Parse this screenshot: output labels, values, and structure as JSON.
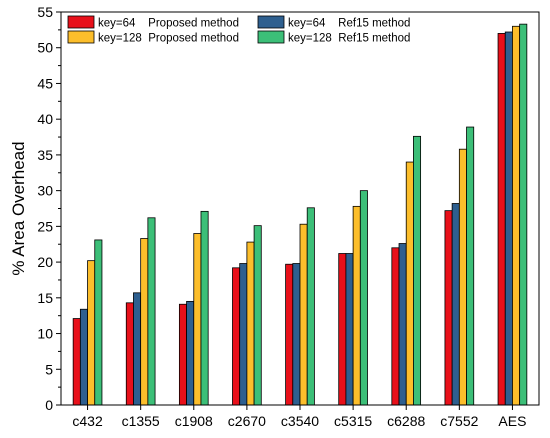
{
  "chart_data": {
    "type": "bar",
    "title": "",
    "xlabel": "",
    "ylabel": "% Area Overhead",
    "ylim": [
      0,
      55
    ],
    "yticks": [
      0,
      5,
      10,
      15,
      20,
      25,
      30,
      35,
      40,
      45,
      50,
      55
    ],
    "grid": false,
    "legend_position": "top-left",
    "categories": [
      "c432",
      "c1355",
      "c1908",
      "c2670",
      "c3540",
      "c5315",
      "c6288",
      "c7552",
      "AES"
    ],
    "series": [
      {
        "name": "key=64    Proposed method",
        "color": "#e8101a",
        "values": [
          12.1,
          14.3,
          14.1,
          19.2,
          19.7,
          21.2,
          22.0,
          27.2,
          52.0
        ]
      },
      {
        "name": "key=64    Ref15 method",
        "color": "#2e5f8f",
        "values": [
          13.4,
          15.7,
          14.5,
          19.8,
          19.8,
          21.2,
          22.6,
          28.2,
          52.2
        ]
      },
      {
        "name": "key=128  Proposed method",
        "color": "#fcbe2b",
        "values": [
          20.2,
          23.3,
          24.0,
          22.8,
          25.3,
          27.8,
          34.0,
          35.8,
          53.0
        ]
      },
      {
        "name": "key=128  Ref15 method",
        "color": "#3cbf78",
        "values": [
          23.1,
          26.2,
          27.1,
          25.1,
          27.6,
          30.0,
          37.6,
          38.9,
          53.3
        ]
      }
    ]
  }
}
